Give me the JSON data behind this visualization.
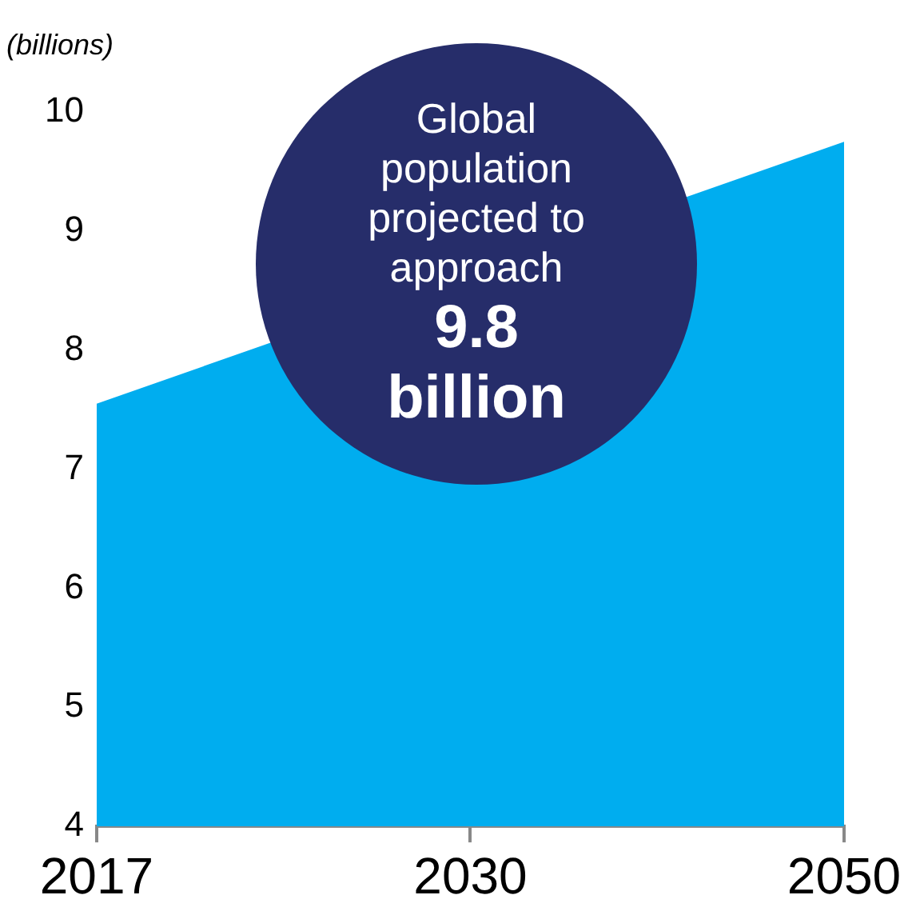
{
  "chart_data": {
    "type": "area",
    "ylabel": "(billions)",
    "categories": [
      "2017",
      "2030",
      "2050"
    ],
    "series": [
      {
        "color": "#00adef",
        "values": [
          7.55,
          null,
          9.75
        ]
      }
    ],
    "ylim": [
      4,
      10
    ],
    "yticks": [
      4,
      5,
      6,
      7,
      8,
      9,
      10
    ],
    "grid": false,
    "legend": false,
    "annotations": [
      "Global population projected to approach",
      "9.8 billion"
    ]
  }
}
